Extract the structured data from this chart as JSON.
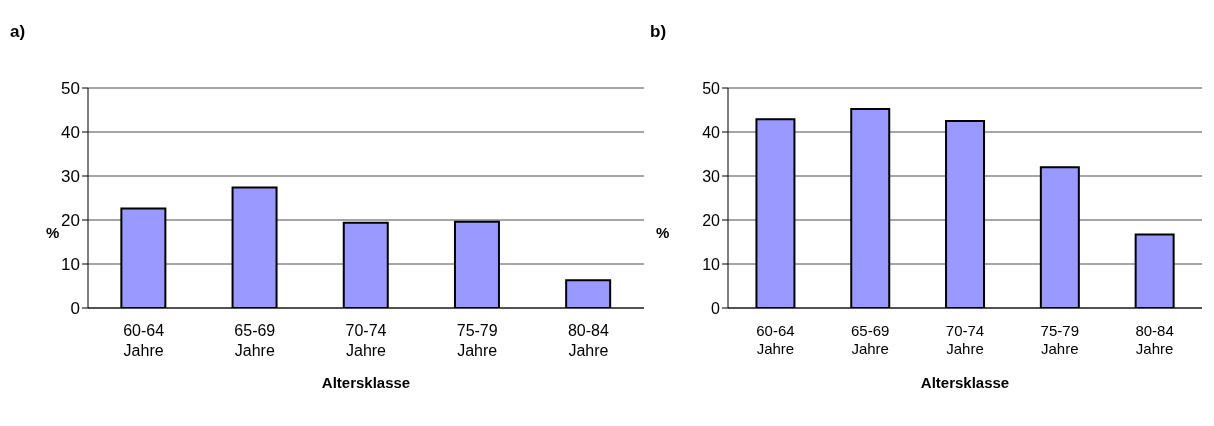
{
  "chart_data": [
    {
      "type": "bar",
      "title": "a)",
      "categories": [
        "60-64\nJahre",
        "65-69\nJahre",
        "70-74\nJahre",
        "75-79\nJahre",
        "80-84\nJahre"
      ],
      "values": [
        22.6,
        27.4,
        19.4,
        19.6,
        6.3
      ],
      "color": "#9999ff",
      "xlabel": "Altersklasse",
      "ylabel": "%",
      "ylim": [
        0,
        50
      ],
      "yticks": [
        0,
        10,
        20,
        30,
        40,
        50
      ],
      "grid": "y"
    },
    {
      "type": "bar",
      "title": "b)",
      "categories": [
        "60-64\nJahre",
        "65-69\nJahre",
        "70-74\nJahre",
        "75-79\nJahre",
        "80-84\nJahre"
      ],
      "values": [
        42.9,
        45.2,
        42.5,
        32.0,
        16.7
      ],
      "color": "#9999ff",
      "xlabel": "Altersklasse",
      "ylabel": "%",
      "ylim": [
        0,
        50
      ],
      "yticks": [
        0,
        10,
        20,
        30,
        40,
        50
      ],
      "grid": "y"
    }
  ]
}
